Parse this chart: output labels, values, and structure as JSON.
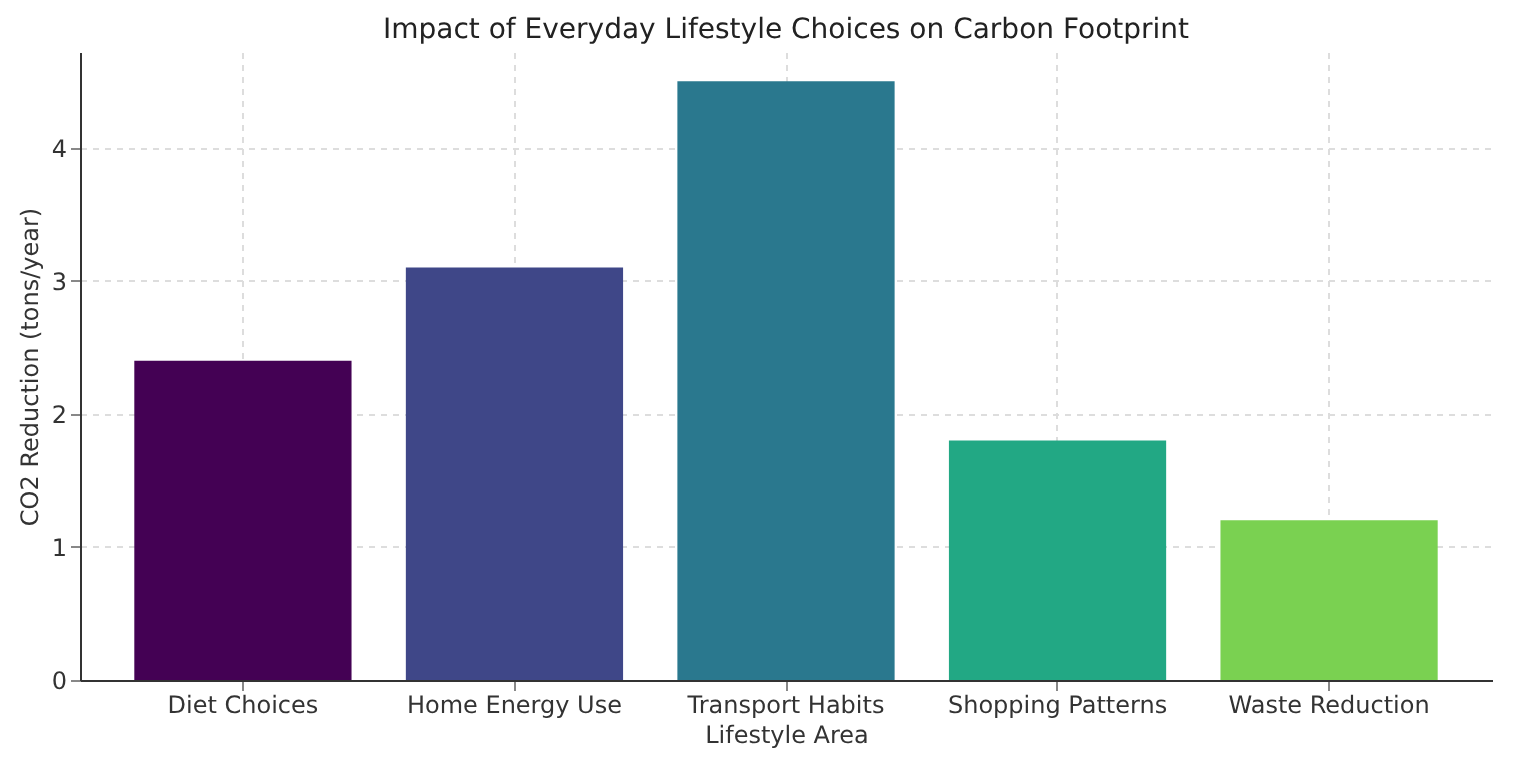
{
  "chart_data": {
    "type": "bar",
    "title": "Impact of Everyday Lifestyle Choices on Carbon Footprint",
    "xlabel": "Lifestyle Area",
    "ylabel": "CO2 Reduction (tons/year)",
    "categories": [
      "Diet Choices",
      "Home Energy Use",
      "Transport Habits",
      "Shopping Patterns",
      "Waste Reduction"
    ],
    "values": [
      2.4,
      3.1,
      4.5,
      1.8,
      1.2
    ],
    "colors": [
      "#440154",
      "#3f4788",
      "#2a788e",
      "#22a884",
      "#7ad151"
    ],
    "ylim": [
      0,
      4.72
    ],
    "yticks": [
      0,
      1,
      2,
      3,
      4
    ],
    "grid": true
  }
}
